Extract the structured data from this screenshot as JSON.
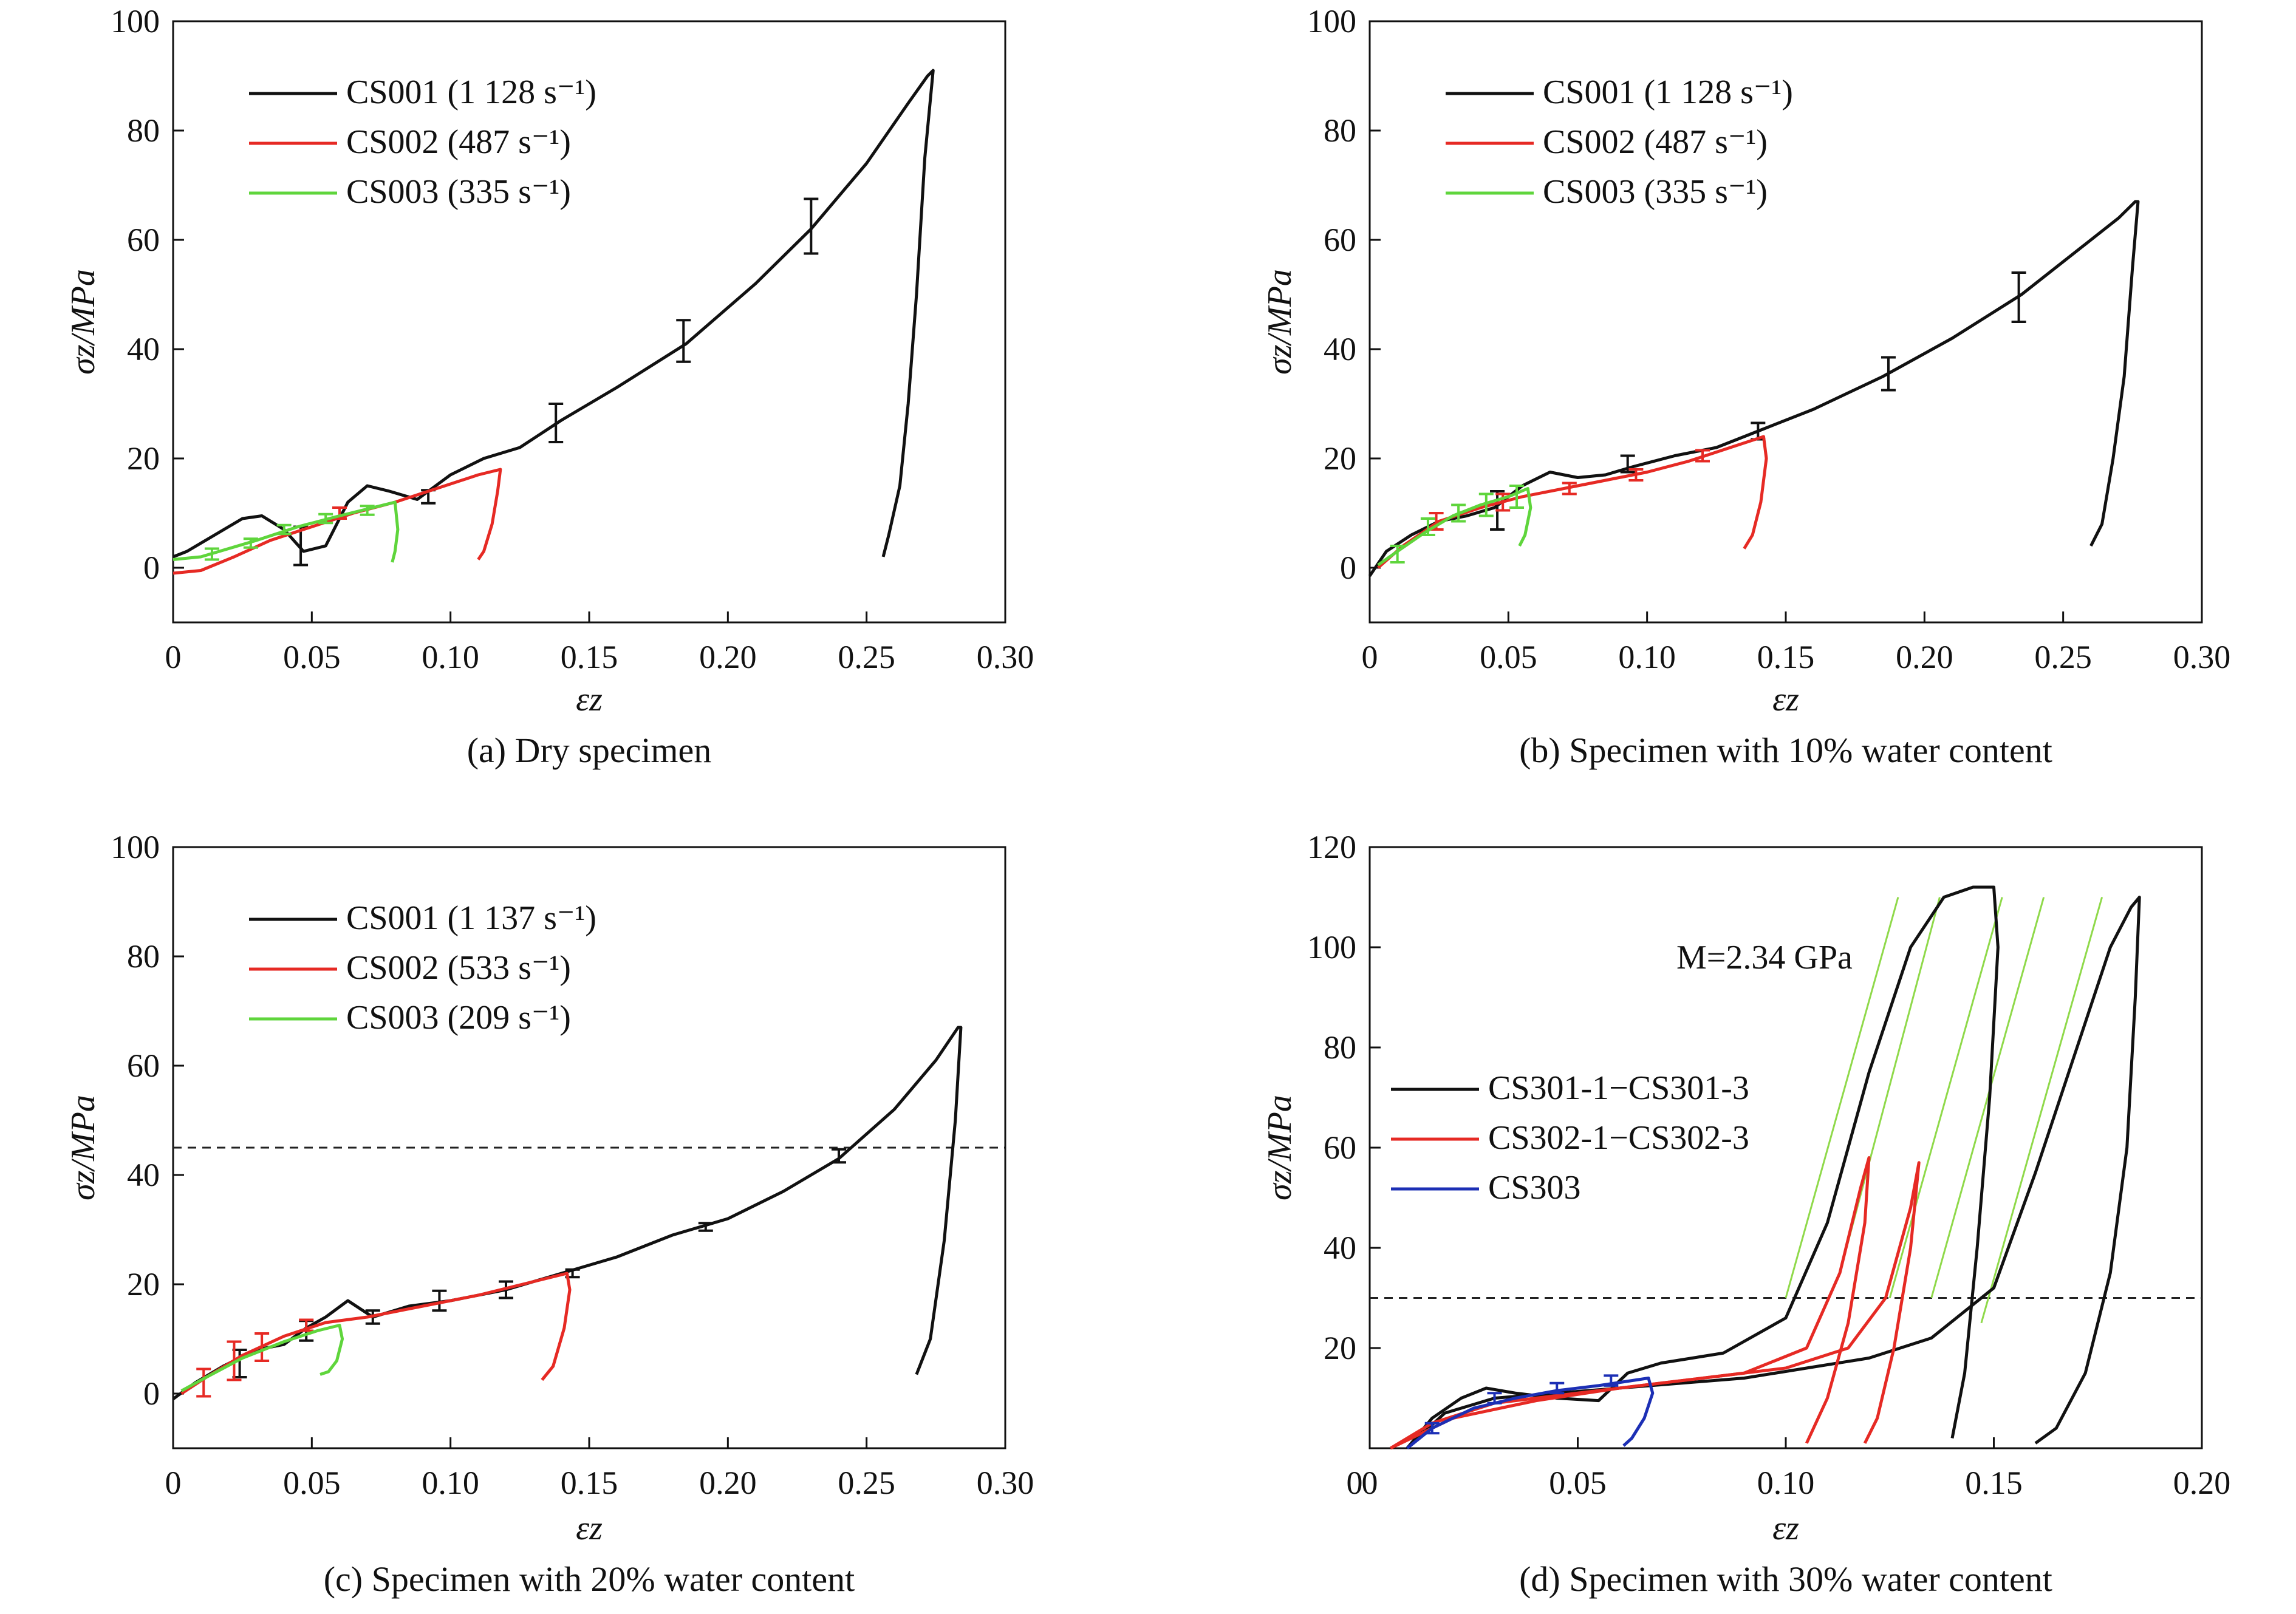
{
  "chart_data": [
    {
      "type": "line",
      "panel": "a",
      "caption": "(a) Dry specimen",
      "xlabel": "εz",
      "ylabel": "σz/MPa",
      "xlim": [
        0,
        0.3
      ],
      "ylim": [
        -10,
        100
      ],
      "xticks": [
        "0",
        "0.05",
        "0.10",
        "0.15",
        "0.20",
        "0.25",
        "0.30"
      ],
      "yticks": [
        "0",
        "20",
        "40",
        "60",
        "80",
        "100"
      ],
      "legend_position": "top-left",
      "series": [
        {
          "name": "CS001 (1 128 s⁻¹)",
          "color": "#111111",
          "x": [
            0,
            0.005,
            0.015,
            0.025,
            0.032,
            0.04,
            0.047,
            0.055,
            0.063,
            0.07,
            0.078,
            0.088,
            0.1,
            0.112,
            0.125,
            0.14,
            0.16,
            0.185,
            0.21,
            0.23,
            0.25,
            0.265,
            0.272,
            0.274,
            0.271,
            0.268,
            0.265,
            0.262,
            0.258,
            0.256
          ],
          "y": [
            2,
            3,
            6,
            9,
            9.5,
            7,
            3,
            4,
            12,
            15,
            14,
            12.5,
            17,
            20,
            22,
            27,
            33,
            41,
            52,
            62,
            74,
            85,
            90,
            91,
            75,
            50,
            30,
            15,
            6,
            2
          ],
          "errbars": [
            {
              "x": 0.046,
              "y": 4,
              "e": 3.5
            },
            {
              "x": 0.092,
              "y": 13,
              "e": 1.2
            },
            {
              "x": 0.138,
              "y": 26.5,
              "e": 3.5
            },
            {
              "x": 0.184,
              "y": 41.5,
              "e": 3.8
            },
            {
              "x": 0.23,
              "y": 62.5,
              "e": 5
            }
          ]
        },
        {
          "name": "CS002 (487 s⁻¹)",
          "color": "#e62a24",
          "x": [
            0,
            0.01,
            0.022,
            0.035,
            0.05,
            0.065,
            0.08,
            0.095,
            0.11,
            0.118,
            0.117,
            0.115,
            0.112,
            0.11
          ],
          "y": [
            -1,
            -0.5,
            2,
            5,
            7.5,
            10,
            12,
            14.5,
            17,
            18,
            14,
            8,
            3,
            1.5
          ],
          "errbars": [
            {
              "x": 0.06,
              "y": 10,
              "e": 1
            }
          ]
        },
        {
          "name": "CS003 (335 s⁻¹)",
          "color": "#5fd53c",
          "x": [
            0,
            0.01,
            0.02,
            0.03,
            0.045,
            0.06,
            0.072,
            0.08,
            0.081,
            0.08,
            0.079
          ],
          "y": [
            1.5,
            2,
            3.5,
            5,
            7.5,
            9.5,
            11,
            12,
            7,
            3,
            1
          ],
          "errbars": [
            {
              "x": 0.014,
              "y": 2.5,
              "e": 1
            },
            {
              "x": 0.028,
              "y": 4.5,
              "e": 0.8
            },
            {
              "x": 0.04,
              "y": 7,
              "e": 0.8
            },
            {
              "x": 0.055,
              "y": 9,
              "e": 0.8
            },
            {
              "x": 0.07,
              "y": 10.5,
              "e": 0.8
            }
          ]
        }
      ]
    },
    {
      "type": "line",
      "panel": "b",
      "caption": "(b) Specimen with 10% water content",
      "xlabel": "εz",
      "ylabel": "σz/MPa",
      "xlim": [
        0,
        0.3
      ],
      "ylim": [
        -10,
        100
      ],
      "xticks": [
        "0",
        "0.05",
        "0.10",
        "0.15",
        "0.20",
        "0.25",
        "0.30"
      ],
      "yticks": [
        "0",
        "20",
        "40",
        "60",
        "80",
        "100"
      ],
      "legend_position": "top-left",
      "series": [
        {
          "name": "CS001 (1 128 s⁻¹)",
          "color": "#111111",
          "x": [
            0,
            0.006,
            0.015,
            0.025,
            0.035,
            0.045,
            0.055,
            0.065,
            0.075,
            0.085,
            0.095,
            0.11,
            0.125,
            0.14,
            0.16,
            0.185,
            0.21,
            0.235,
            0.255,
            0.27,
            0.276,
            0.277,
            0.275,
            0.272,
            0.268,
            0.264,
            0.26
          ],
          "y": [
            -1.5,
            3,
            6,
            8.5,
            9.5,
            11,
            15,
            17.5,
            16.5,
            17,
            18.5,
            20.5,
            22,
            25,
            29,
            35,
            42,
            50,
            58,
            64,
            67,
            67,
            55,
            35,
            20,
            8,
            4
          ],
          "errbars": [
            {
              "x": 0.046,
              "y": 10.5,
              "e": 3.5
            },
            {
              "x": 0.093,
              "y": 19,
              "e": 1.5
            },
            {
              "x": 0.14,
              "y": 25,
              "e": 1.5
            },
            {
              "x": 0.187,
              "y": 35.5,
              "e": 3
            },
            {
              "x": 0.234,
              "y": 49.5,
              "e": 4.5
            }
          ]
        },
        {
          "name": "CS002 (487 s⁻¹)",
          "color": "#e62a24",
          "x": [
            0.003,
            0.012,
            0.025,
            0.04,
            0.055,
            0.07,
            0.085,
            0.1,
            0.115,
            0.13,
            0.142,
            0.143,
            0.141,
            0.138,
            0.135
          ],
          "y": [
            0,
            4,
            8.5,
            11,
            13,
            14.5,
            16,
            17.5,
            19.5,
            22,
            24,
            20,
            12,
            6,
            3.5
          ],
          "errbars": [
            {
              "x": 0.024,
              "y": 8.5,
              "e": 1.5
            },
            {
              "x": 0.048,
              "y": 12,
              "e": 1.5
            },
            {
              "x": 0.072,
              "y": 14.5,
              "e": 1
            },
            {
              "x": 0.096,
              "y": 17,
              "e": 1
            },
            {
              "x": 0.12,
              "y": 20.5,
              "e": 1
            }
          ]
        },
        {
          "name": "CS003 (335 s⁻¹)",
          "color": "#5fd53c",
          "x": [
            0.003,
            0.01,
            0.02,
            0.03,
            0.04,
            0.05,
            0.057,
            0.058,
            0.056,
            0.054
          ],
          "y": [
            0.5,
            3,
            6.5,
            9.5,
            11.5,
            13,
            14.5,
            11,
            6,
            4
          ],
          "errbars": [
            {
              "x": 0.01,
              "y": 2.5,
              "e": 1.5
            },
            {
              "x": 0.021,
              "y": 7.5,
              "e": 1.5
            },
            {
              "x": 0.032,
              "y": 10,
              "e": 1.5
            },
            {
              "x": 0.042,
              "y": 11.5,
              "e": 2
            },
            {
              "x": 0.053,
              "y": 13,
              "e": 2
            }
          ]
        }
      ]
    },
    {
      "type": "line",
      "panel": "c",
      "caption": "(c) Specimen with 20% water content",
      "xlabel": "εz",
      "ylabel": "σz/MPa",
      "xlim": [
        0,
        0.3
      ],
      "ylim": [
        -10,
        100
      ],
      "xticks": [
        "0",
        "0.05",
        "0.10",
        "0.15",
        "0.20",
        "0.25",
        "0.30"
      ],
      "yticks": [
        "0",
        "20",
        "40",
        "60",
        "80",
        "100"
      ],
      "legend_position": "top-left",
      "hline": 45,
      "series": [
        {
          "name": "CS001 (1 137 s⁻¹)",
          "color": "#111111",
          "x": [
            0,
            0.008,
            0.018,
            0.03,
            0.04,
            0.048,
            0.055,
            0.063,
            0.072,
            0.085,
            0.1,
            0.12,
            0.14,
            0.16,
            0.18,
            0.2,
            0.22,
            0.24,
            0.26,
            0.275,
            0.283,
            0.284,
            0.282,
            0.278,
            0.273,
            0.268
          ],
          "y": [
            -1,
            2,
            5,
            8,
            9,
            12,
            14,
            17,
            14,
            16,
            17,
            19,
            22,
            25,
            29,
            32,
            37,
            43,
            52,
            61,
            67,
            67,
            50,
            28,
            10,
            3.5
          ],
          "errbars": [
            {
              "x": 0.024,
              "y": 5.5,
              "e": 2.5
            },
            {
              "x": 0.048,
              "y": 11.5,
              "e": 1.8
            },
            {
              "x": 0.072,
              "y": 14,
              "e": 1.2
            },
            {
              "x": 0.096,
              "y": 17,
              "e": 1.8
            },
            {
              "x": 0.12,
              "y": 19,
              "e": 1.5
            },
            {
              "x": 0.144,
              "y": 22,
              "e": 0.7
            },
            {
              "x": 0.192,
              "y": 30.5,
              "e": 0.7
            },
            {
              "x": 0.24,
              "y": 43.5,
              "e": 1.2
            }
          ]
        },
        {
          "name": "CS002 (533 s⁻¹)",
          "color": "#e62a24",
          "x": [
            0.003,
            0.012,
            0.025,
            0.04,
            0.055,
            0.07,
            0.09,
            0.11,
            0.13,
            0.142,
            0.143,
            0.141,
            0.137,
            0.133
          ],
          "y": [
            0,
            3,
            7,
            10.5,
            13,
            14,
            16,
            18,
            20.5,
            22,
            19,
            12,
            5,
            2.5
          ],
          "errbars": [
            {
              "x": 0.011,
              "y": 2,
              "e": 2.5
            },
            {
              "x": 0.022,
              "y": 6,
              "e": 3.5
            },
            {
              "x": 0.032,
              "y": 8.5,
              "e": 2.5
            },
            {
              "x": 0.048,
              "y": 12.5,
              "e": 1
            }
          ]
        },
        {
          "name": "CS003 (209 s⁻¹)",
          "color": "#5fd53c",
          "x": [
            0.003,
            0.012,
            0.025,
            0.04,
            0.052,
            0.06,
            0.061,
            0.059,
            0.056,
            0.053
          ],
          "y": [
            0.5,
            3,
            6.5,
            9.5,
            11.5,
            12.5,
            10,
            6,
            4,
            3.5
          ],
          "errbars": []
        }
      ]
    },
    {
      "type": "line",
      "panel": "d",
      "caption": "(d) Specimen with 30% water content",
      "xlabel": "εz",
      "ylabel": "σz/MPa",
      "annotation": "M=2.34 GPa",
      "xlim": [
        0,
        0.2
      ],
      "ylim": [
        0,
        120
      ],
      "xticks": [
        "0",
        "0.05",
        "0.10",
        "0.15",
        "0.20"
      ],
      "yticks": [
        "20",
        "40",
        "60",
        "80",
        "100",
        "120"
      ],
      "legend_position": "center-left",
      "hline": 30,
      "series": [
        {
          "name": "CS301-1−CS301-3",
          "color": "#111111",
          "x": [
            0.009,
            0.015,
            0.022,
            0.028,
            0.035,
            0.045,
            0.055,
            0.062,
            0.07,
            0.085,
            0.1,
            0.11,
            0.12,
            0.13,
            0.138,
            0.145,
            0.15,
            0.151,
            0.149,
            0.146,
            0.143,
            0.14
          ],
          "y": [
            0,
            6,
            10,
            12,
            11,
            10,
            9.5,
            15,
            17,
            19,
            26,
            45,
            75,
            100,
            110,
            112,
            112,
            100,
            70,
            40,
            15,
            2
          ],
          "x2": [
            0.009,
            0.018,
            0.03,
            0.045,
            0.06,
            0.075,
            0.09,
            0.105,
            0.12,
            0.135,
            0.15,
            0.16,
            0.17,
            0.178,
            0.183,
            0.185,
            0.184,
            0.182,
            0.178,
            0.172,
            0.165,
            0.16
          ],
          "y2": [
            0,
            7,
            10,
            11,
            12,
            13,
            14,
            16,
            18,
            22,
            32,
            55,
            80,
            100,
            108,
            110,
            90,
            60,
            35,
            15,
            4,
            1
          ]
        },
        {
          "name": "CS302-1−CS302-3",
          "color": "#e62a24",
          "x": [
            0.005,
            0.015,
            0.03,
            0.05,
            0.07,
            0.09,
            0.105,
            0.113,
            0.118,
            0.12,
            0.119,
            0.115,
            0.11,
            0.105
          ],
          "y": [
            0,
            5,
            9,
            11,
            13,
            15,
            20,
            35,
            52,
            58,
            45,
            25,
            10,
            1
          ],
          "x2": [
            0.005,
            0.02,
            0.04,
            0.06,
            0.08,
            0.1,
            0.115,
            0.124,
            0.13,
            0.132,
            0.13,
            0.126,
            0.122,
            0.119
          ],
          "y2": [
            0,
            6,
            9.5,
            12,
            14,
            16,
            20,
            30,
            48,
            57,
            40,
            20,
            6,
            1
          ]
        },
        {
          "name": "CS303",
          "color": "#1c2fb5",
          "x": [
            0.009,
            0.015,
            0.025,
            0.035,
            0.045,
            0.055,
            0.063,
            0.067,
            0.068,
            0.066,
            0.063,
            0.061
          ],
          "y": [
            0,
            4,
            8,
            10,
            11.5,
            12.5,
            13.5,
            14,
            11,
            6,
            2,
            0.5
          ],
          "errbars": [
            {
              "x": 0.015,
              "y": 4,
              "e": 1
            },
            {
              "x": 0.03,
              "y": 10,
              "e": 1
            },
            {
              "x": 0.045,
              "y": 12,
              "e": 1
            },
            {
              "x": 0.058,
              "y": 13.5,
              "e": 1
            }
          ]
        }
      ],
      "guide_lines": [
        {
          "x": [
            0.1,
            0.127
          ],
          "y": [
            30,
            110
          ]
        },
        {
          "x": [
            0.113,
            0.137
          ],
          "y": [
            35,
            110
          ]
        },
        {
          "x": [
            0.125,
            0.152
          ],
          "y": [
            30,
            110
          ]
        },
        {
          "x": [
            0.135,
            0.162
          ],
          "y": [
            30,
            110
          ]
        },
        {
          "x": [
            0.147,
            0.176
          ],
          "y": [
            25,
            110
          ]
        }
      ]
    }
  ]
}
